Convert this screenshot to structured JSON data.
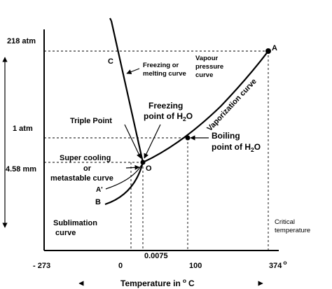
{
  "y_axis": {
    "p_218": "218 atm",
    "p_1": "1 atm",
    "p_458": "4.58 mm"
  },
  "x_axis": {
    "t_neg273": "- 273",
    "t_0": "0",
    "t_00075": "0.0075",
    "t_100": "100",
    "t_374": "374",
    "t_374_sup": "o",
    "title_prefix": "Temperature in",
    "title_sup": "o",
    "title_suffix": "C"
  },
  "points": {
    "A": "A",
    "B": "B",
    "A_prime": "A'",
    "C": "C",
    "O": "O"
  },
  "labels": {
    "freezing_melting_line1": "Freezing or",
    "freezing_melting_line2": "melting curve",
    "vapour_pressure_line1": "Vapour",
    "vapour_pressure_line2": "pressure",
    "vapour_pressure_line3": "curve",
    "vaporization_curve": "Vaporization curve",
    "freezing_point_line1": "Freezing",
    "freezing_point_prefix": "point of H",
    "freezing_point_sub": "2",
    "freezing_point_suffix": "O",
    "triple_point": "Triple Point",
    "boiling_line1": "Boiling",
    "boiling_prefix": "point of H",
    "boiling_sub": "2",
    "boiling_suffix": "O",
    "super_cooling_line1": "Super cooling",
    "super_cooling_line2": "or",
    "super_cooling_line3": "metastable curve",
    "sublimation_line1": "Sublimation",
    "sublimation_line2": "curve",
    "critical_line1": "Critical",
    "critical_line2": "temperature"
  }
}
